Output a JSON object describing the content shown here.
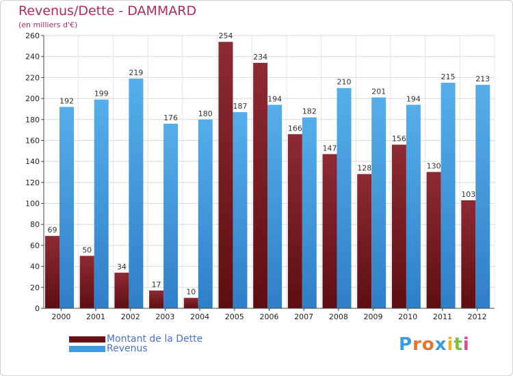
{
  "header": {
    "title": "Revenus/Dette - DAMMARD",
    "subtitle": "(en milliers d'€)"
  },
  "chart_data": {
    "type": "bar",
    "categories": [
      "2000",
      "2001",
      "2002",
      "2003",
      "2004",
      "2005",
      "2006",
      "2007",
      "2008",
      "2009",
      "2010",
      "2011",
      "2012"
    ],
    "series": [
      {
        "name": "Montant de la Dette",
        "color": "#7a1c22",
        "values": [
          69,
          50,
          34,
          17,
          10,
          254,
          234,
          166,
          147,
          128,
          156,
          130,
          103
        ]
      },
      {
        "name": "Revenus",
        "color": "#3d9be0",
        "values": [
          192,
          199,
          219,
          176,
          180,
          187,
          194,
          182,
          210,
          201,
          194,
          215,
          213
        ]
      }
    ],
    "ylim": [
      0,
      260
    ],
    "yticks": [
      0,
      20,
      40,
      60,
      80,
      100,
      120,
      140,
      160,
      180,
      200,
      220,
      240,
      260
    ],
    "grid": true,
    "legend_position": "bottom-left"
  },
  "legend": {
    "items": [
      {
        "label": "Montant de la Dette",
        "color": "#7a1c22"
      },
      {
        "label": "Revenus",
        "color": "#3d9be0"
      }
    ]
  },
  "logo": {
    "letters": [
      "P",
      "r",
      "o",
      "x",
      "i",
      "t",
      "i"
    ],
    "colors": [
      "#3d9be0",
      "#e8742a",
      "#e8742a",
      "#3d9be0",
      "#f2b21c",
      "#7ac043",
      "#e04a8a"
    ]
  }
}
